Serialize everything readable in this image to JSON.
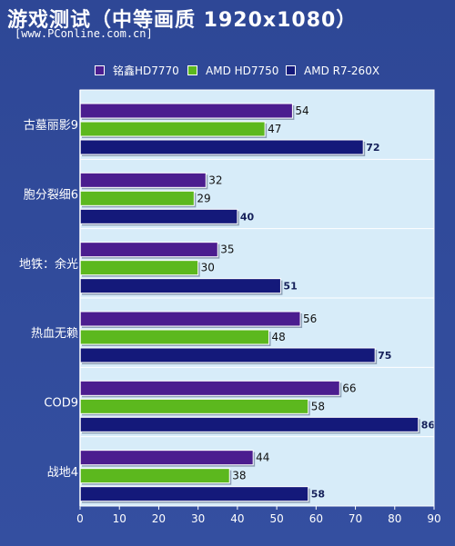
{
  "header": {
    "title": "游戏测试（中等画质 1920x1080）",
    "subtitle": "[www.PConline.com.cn]"
  },
  "chart_data": {
    "type": "bar",
    "orientation": "horizontal",
    "categories": [
      "古墓丽影9",
      "胞分裂细6",
      "地铁：余光",
      "热血无赖",
      "COD9",
      "战地4"
    ],
    "series": [
      {
        "name": "铭鑫HD7770",
        "color": "#4b1d8f",
        "values": [
          54,
          32,
          35,
          56,
          66,
          44
        ]
      },
      {
        "name": "AMD HD7750",
        "color": "#5cb81e",
        "values": [
          47,
          29,
          30,
          48,
          58,
          38
        ]
      },
      {
        "name": "AMD R7-260X",
        "color": "#14197a",
        "values": [
          72,
          40,
          51,
          75,
          86,
          58
        ]
      }
    ],
    "xlim": [
      0,
      90
    ],
    "xticks": [
      0,
      10,
      20,
      30,
      40,
      50,
      60,
      70,
      80,
      90
    ],
    "legend": "top",
    "grid": false,
    "colors": {
      "plot_background": "#d7ecf9",
      "frame": "#2f4a97"
    }
  }
}
